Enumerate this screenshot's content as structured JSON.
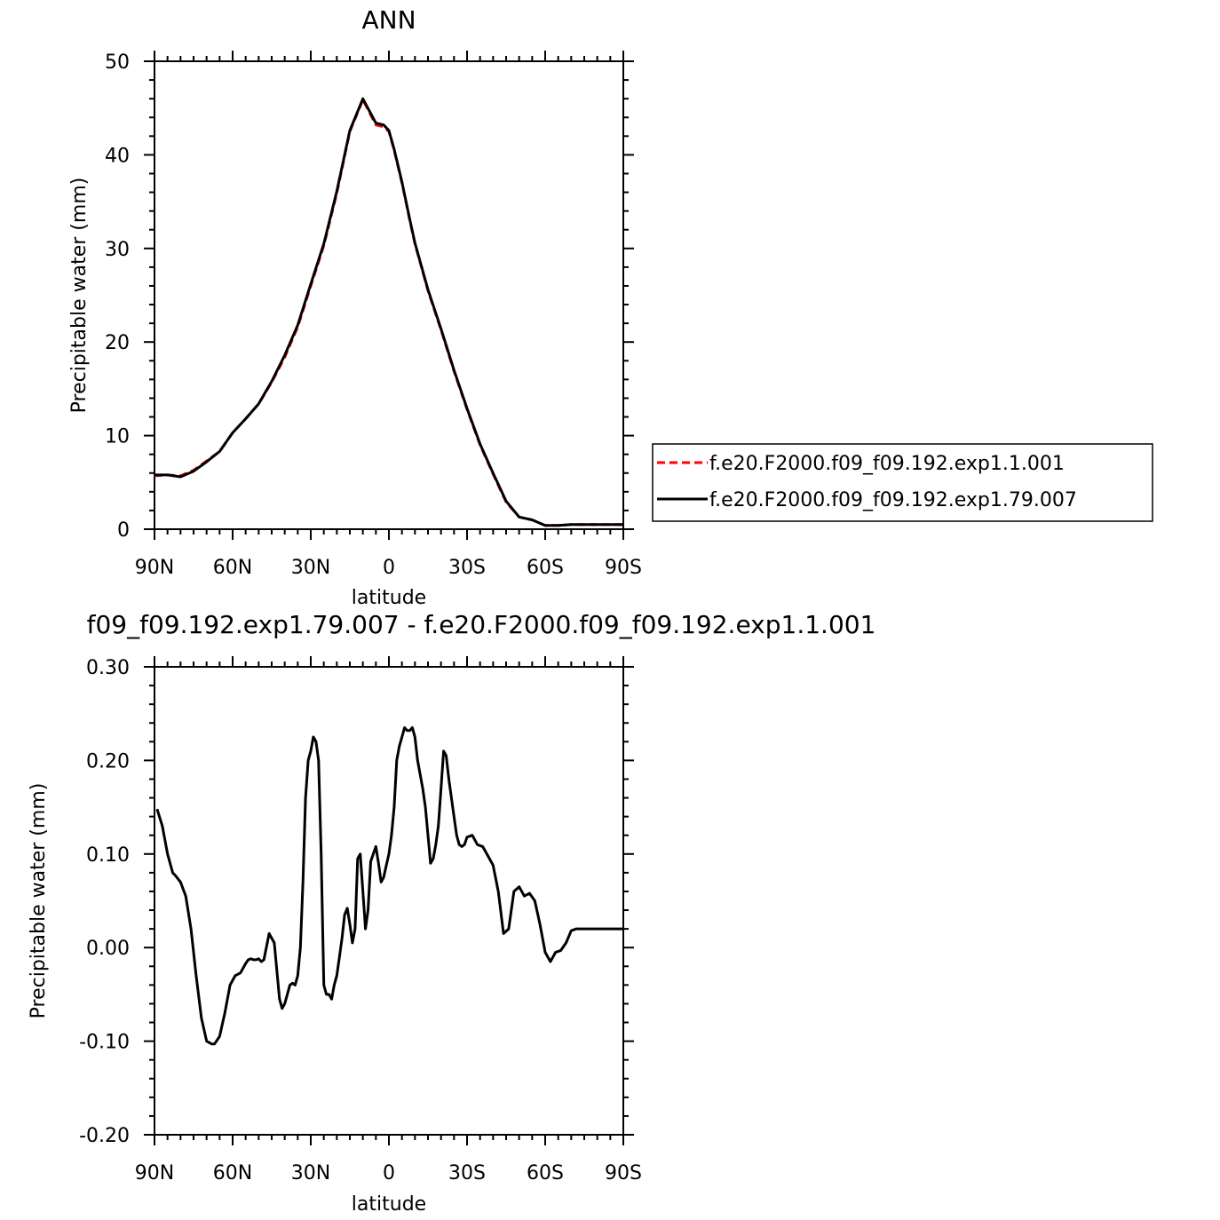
{
  "chart_data": [
    {
      "type": "line",
      "title": "ANN",
      "xlabel": "latitude",
      "ylabel": "Precipitable water (mm)",
      "xlim": [
        90,
        -90
      ],
      "ylim": [
        0,
        50
      ],
      "x_ticks": [
        90,
        60,
        30,
        0,
        -30,
        -60,
        -90
      ],
      "x_tick_labels": [
        "90N",
        "60N",
        "30N",
        "0",
        "30S",
        "60S",
        "90S"
      ],
      "y_ticks": [
        0,
        10,
        20,
        30,
        40,
        50
      ],
      "y_tick_labels": [
        "0",
        "10",
        "20",
        "30",
        "40",
        "50"
      ],
      "legend_position": "right",
      "series": [
        {
          "name": "f.e20.F2000.f09_f09.192.exp1.1.001",
          "color": "#ff0000",
          "dash": "dashed",
          "x": [
            90,
            85,
            80,
            75,
            70,
            65,
            60,
            55,
            50,
            45,
            40,
            35,
            30,
            25,
            20,
            15,
            10,
            5,
            2,
            0,
            -2,
            -5,
            -8,
            -10,
            -15,
            -20,
            -25,
            -30,
            -35,
            -40,
            -45,
            -50,
            -55,
            -60,
            -65,
            -70,
            -75,
            -80,
            -85,
            -88,
            -90
          ],
          "y": [
            5.7,
            5.8,
            5.7,
            6.3,
            7.3,
            8.3,
            10.3,
            11.8,
            13.4,
            15.7,
            18.4,
            21.6,
            26.0,
            30.3,
            35.9,
            42.5,
            45.9,
            43.2,
            43.0,
            42.5,
            40.5,
            37.0,
            33.0,
            30.5,
            25.5,
            21.3,
            16.9,
            12.8,
            9.0,
            5.9,
            2.9,
            1.3,
            1.0,
            0.4,
            0.4,
            0.5,
            0.5,
            0.5,
            0.5,
            0.5,
            0.5
          ]
        },
        {
          "name": "f.e20.F2000.f09_f09.192.exp1.79.007",
          "color": "#000000",
          "dash": "solid",
          "x": [
            90,
            85,
            80,
            75,
            70,
            65,
            60,
            55,
            50,
            45,
            40,
            35,
            30,
            25,
            20,
            15,
            10,
            5,
            2,
            0,
            -2,
            -5,
            -8,
            -10,
            -15,
            -20,
            -25,
            -30,
            -35,
            -40,
            -45,
            -50,
            -55,
            -60,
            -65,
            -70,
            -75,
            -80,
            -85,
            -88,
            -90
          ],
          "y": [
            5.8,
            5.8,
            5.6,
            6.2,
            7.2,
            8.3,
            10.3,
            11.8,
            13.4,
            15.8,
            18.6,
            21.8,
            26.2,
            30.5,
            36.1,
            42.6,
            46.0,
            43.4,
            43.2,
            42.6,
            40.6,
            37.1,
            33.1,
            30.6,
            25.6,
            21.4,
            17.0,
            12.9,
            9.1,
            6.0,
            3.0,
            1.3,
            1.0,
            0.4,
            0.4,
            0.5,
            0.5,
            0.5,
            0.5,
            0.5,
            0.5
          ]
        }
      ]
    },
    {
      "type": "line",
      "title": "f09_f09.192.exp1.79.007 - f.e20.F2000.f09_f09.192.exp1.1.001",
      "xlabel": "latitude",
      "ylabel": "Precipitable water (mm)",
      "xlim": [
        90,
        -90
      ],
      "ylim": [
        -0.2,
        0.3
      ],
      "x_ticks": [
        90,
        60,
        30,
        0,
        -30,
        -60,
        -90
      ],
      "x_tick_labels": [
        "90N",
        "60N",
        "30N",
        "0",
        "30S",
        "60S",
        "90S"
      ],
      "y_ticks": [
        -0.2,
        -0.1,
        0,
        0.1,
        0.2,
        0.3
      ],
      "y_tick_labels": [
        "-0.20",
        "-0.10",
        "0.00",
        "0.10",
        "0.20",
        "0.30"
      ],
      "series": [
        {
          "color": "#000000",
          "dash": "solid",
          "x": [
            89,
            87,
            85,
            83,
            82,
            80,
            78,
            76,
            74,
            72,
            70,
            68,
            67,
            65,
            63,
            61,
            59,
            57,
            55,
            54,
            53,
            52,
            51,
            50,
            49,
            48,
            46,
            44,
            42,
            41,
            40,
            39,
            38,
            37,
            36,
            35,
            34,
            33,
            32,
            31,
            30,
            29,
            28,
            27,
            26,
            25,
            24,
            23,
            22,
            21,
            20,
            19,
            18,
            17,
            16,
            15,
            14,
            13,
            12,
            11,
            10,
            9,
            8,
            7,
            6,
            5,
            4,
            3,
            2,
            1,
            0,
            -1,
            -2,
            -3,
            -4,
            -5,
            -6,
            -7,
            -8,
            -9,
            -10,
            -11,
            -12,
            -13,
            -14,
            -15,
            -16,
            -17,
            -18,
            -19,
            -20,
            -21,
            -22,
            -23,
            -24,
            -25,
            -26,
            -27,
            -28,
            -29,
            -30,
            -32,
            -34,
            -36,
            -38,
            -40,
            -42,
            -44,
            -46,
            -48,
            -50,
            -52,
            -54,
            -56,
            -58,
            -60,
            -62,
            -64,
            -66,
            -68,
            -70,
            -72,
            -74,
            -76,
            -78,
            -80,
            -82,
            -84,
            -86,
            -88,
            -90
          ],
          "y": [
            0.148,
            0.13,
            0.1,
            0.08,
            0.077,
            0.07,
            0.055,
            0.02,
            -0.03,
            -0.075,
            -0.1,
            -0.103,
            -0.103,
            -0.095,
            -0.07,
            -0.04,
            -0.03,
            -0.027,
            -0.017,
            -0.013,
            -0.012,
            -0.013,
            -0.013,
            -0.012,
            -0.015,
            -0.013,
            0.015,
            0.005,
            -0.055,
            -0.065,
            -0.06,
            -0.05,
            -0.04,
            -0.038,
            -0.04,
            -0.03,
            0.0,
            0.07,
            0.16,
            0.2,
            0.21,
            0.225,
            0.22,
            0.2,
            0.1,
            -0.04,
            -0.05,
            -0.05,
            -0.055,
            -0.04,
            -0.03,
            -0.01,
            0.01,
            0.035,
            0.042,
            0.025,
            0.005,
            0.02,
            0.095,
            0.1,
            0.06,
            0.02,
            0.04,
            0.092,
            0.1,
            0.108,
            0.09,
            0.07,
            0.075,
            0.088,
            0.1,
            0.12,
            0.15,
            0.2,
            0.215,
            0.225,
            0.235,
            0.232,
            0.232,
            0.235,
            0.225,
            0.2,
            0.185,
            0.17,
            0.15,
            0.12,
            0.09,
            0.095,
            0.11,
            0.13,
            0.17,
            0.21,
            0.205,
            0.18,
            0.16,
            0.14,
            0.12,
            0.11,
            0.108,
            0.11,
            0.118,
            0.12,
            0.11,
            0.108,
            0.098,
            0.088,
            0.06,
            0.015,
            0.02,
            0.06,
            0.065,
            0.055,
            0.058,
            0.05,
            0.025,
            -0.005,
            -0.015,
            -0.005,
            -0.003,
            0.005,
            0.018,
            0.02,
            0.02,
            0.02,
            0.02,
            0.02,
            0.02,
            0.02,
            0.02,
            0.02,
            0.02
          ]
        }
      ]
    }
  ]
}
